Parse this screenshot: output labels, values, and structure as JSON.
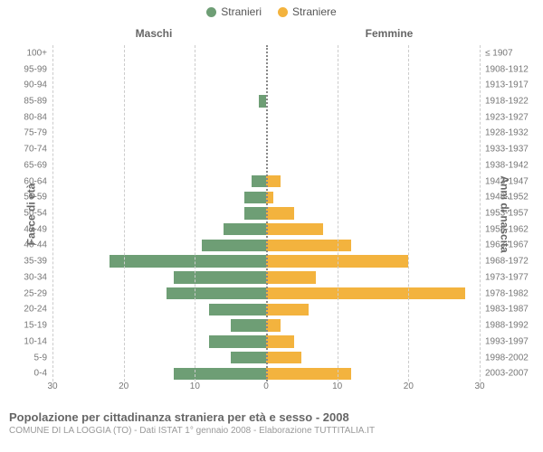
{
  "legend": {
    "male": {
      "label": "Stranieri",
      "color": "#6e9e75"
    },
    "female": {
      "label": "Straniere",
      "color": "#f3b33e"
    }
  },
  "headers": {
    "male": "Maschi",
    "female": "Femmine",
    "left_axis": "Fasce di età",
    "right_axis": "Anni di nascita"
  },
  "chart": {
    "type": "population-pyramid",
    "max_value": 30,
    "x_ticks_left": [
      30,
      20,
      10,
      0
    ],
    "x_ticks_right": [
      0,
      10,
      20,
      30
    ],
    "grid_step": 10,
    "background_color": "#ffffff",
    "grid_color": "#cccccc",
    "center_color": "#888888",
    "label_fontsize": 10,
    "label_color": "#777777",
    "rows": [
      {
        "age": "100+",
        "birth": "≤ 1907",
        "m": 0,
        "f": 0
      },
      {
        "age": "95-99",
        "birth": "1908-1912",
        "m": 0,
        "f": 0
      },
      {
        "age": "90-94",
        "birth": "1913-1917",
        "m": 0,
        "f": 0
      },
      {
        "age": "85-89",
        "birth": "1918-1922",
        "m": 1,
        "f": 0
      },
      {
        "age": "80-84",
        "birth": "1923-1927",
        "m": 0,
        "f": 0
      },
      {
        "age": "75-79",
        "birth": "1928-1932",
        "m": 0,
        "f": 0
      },
      {
        "age": "70-74",
        "birth": "1933-1937",
        "m": 0,
        "f": 0
      },
      {
        "age": "65-69",
        "birth": "1938-1942",
        "m": 0,
        "f": 0
      },
      {
        "age": "60-64",
        "birth": "1943-1947",
        "m": 2,
        "f": 2
      },
      {
        "age": "55-59",
        "birth": "1948-1952",
        "m": 3,
        "f": 1
      },
      {
        "age": "50-54",
        "birth": "1953-1957",
        "m": 3,
        "f": 4
      },
      {
        "age": "45-49",
        "birth": "1958-1962",
        "m": 6,
        "f": 8
      },
      {
        "age": "40-44",
        "birth": "1963-1967",
        "m": 9,
        "f": 12
      },
      {
        "age": "35-39",
        "birth": "1968-1972",
        "m": 22,
        "f": 20
      },
      {
        "age": "30-34",
        "birth": "1973-1977",
        "m": 13,
        "f": 7
      },
      {
        "age": "25-29",
        "birth": "1978-1982",
        "m": 14,
        "f": 28
      },
      {
        "age": "20-24",
        "birth": "1983-1987",
        "m": 8,
        "f": 6
      },
      {
        "age": "15-19",
        "birth": "1988-1992",
        "m": 5,
        "f": 2
      },
      {
        "age": "10-14",
        "birth": "1993-1997",
        "m": 8,
        "f": 4
      },
      {
        "age": "5-9",
        "birth": "1998-2002",
        "m": 5,
        "f": 5
      },
      {
        "age": "0-4",
        "birth": "2003-2007",
        "m": 13,
        "f": 12
      }
    ]
  },
  "footer": {
    "title": "Popolazione per cittadinanza straniera per età e sesso - 2008",
    "subtitle": "COMUNE DI LA LOGGIA (TO) - Dati ISTAT 1° gennaio 2008 - Elaborazione TUTTITALIA.IT"
  }
}
